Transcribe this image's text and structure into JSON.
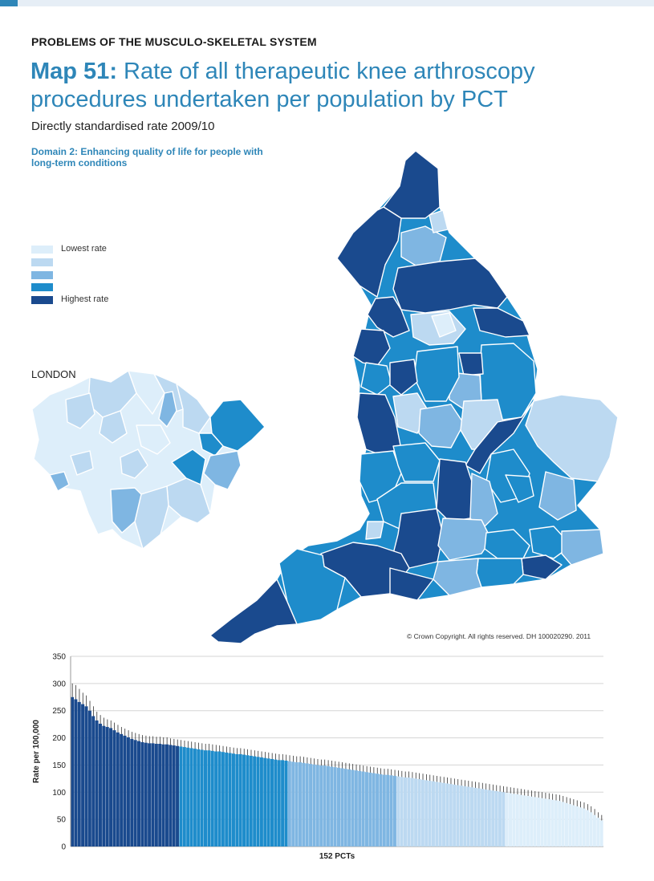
{
  "header": {
    "section": "PROBLEMS OF THE MUSCULO-SKELETAL SYSTEM",
    "title_prefix": "Map 51:",
    "title_rest": "Rate of all therapeutic knee arthroscopy procedures undertaken per population by PCT",
    "subtitle": "Directly standardised rate 2009/10",
    "domain": "Domain 2: Enhancing quality of life for people with long-term conditions"
  },
  "legend": {
    "items": [
      {
        "label": "Lowest rate",
        "color": "#ddeefa"
      },
      {
        "label": "",
        "color": "#bcd9f1"
      },
      {
        "label": "",
        "color": "#7fb6e2"
      },
      {
        "label": "",
        "color": "#1e8ccb"
      },
      {
        "label": "Highest rate",
        "color": "#1a4a8e"
      }
    ]
  },
  "london_label": "LONDON",
  "copyright": "© Crown Copyright. All rights reserved. DH 100020290. 2011",
  "chart_data": {
    "type": "bar",
    "xlabel": "152 PCTs",
    "ylabel": "Rate per 100,000",
    "ylim": [
      0,
      350
    ],
    "yticks": [
      0,
      50,
      100,
      150,
      200,
      250,
      300,
      350
    ],
    "grid": true,
    "n_bars": 152,
    "quintile_colors": [
      "#1a4a8e",
      "#1e8ccb",
      "#7fb6e2",
      "#bcd9f1",
      "#ddeefa"
    ],
    "values": [
      275,
      271,
      266,
      262,
      258,
      250,
      240,
      232,
      226,
      222,
      220,
      218,
      214,
      210,
      207,
      204,
      201,
      198,
      196,
      194,
      192,
      191,
      190,
      190,
      189,
      189,
      188,
      188,
      187,
      186,
      185,
      184,
      183,
      182,
      181,
      180,
      179,
      178,
      177,
      177,
      176,
      175,
      175,
      174,
      173,
      172,
      171,
      170,
      170,
      169,
      168,
      167,
      166,
      165,
      164,
      163,
      162,
      161,
      160,
      159,
      159,
      158,
      157,
      156,
      155,
      155,
      154,
      153,
      152,
      151,
      150,
      149,
      149,
      148,
      147,
      146,
      145,
      144,
      143,
      142,
      141,
      140,
      139,
      138,
      137,
      136,
      135,
      134,
      133,
      132,
      132,
      131,
      130,
      129,
      128,
      127,
      127,
      126,
      125,
      124,
      123,
      122,
      121,
      120,
      119,
      118,
      117,
      116,
      115,
      114,
      113,
      112,
      111,
      110,
      109,
      108,
      107,
      106,
      105,
      104,
      103,
      102,
      101,
      100,
      99,
      98,
      97,
      96,
      95,
      94,
      93,
      92,
      91,
      90,
      89,
      88,
      87,
      86,
      85,
      84,
      82,
      80,
      78,
      76,
      74,
      72,
      70,
      67,
      63,
      58,
      53,
      48
    ],
    "error_upper": [
      300,
      297,
      290,
      283,
      278,
      268,
      258,
      248,
      242,
      237,
      234,
      232,
      228,
      224,
      220,
      217,
      214,
      211,
      209,
      207,
      205,
      204,
      203,
      203,
      202,
      202,
      201,
      201,
      199,
      198,
      197,
      196,
      195,
      194,
      193,
      192,
      191,
      190,
      189,
      189,
      188,
      187,
      186,
      185,
      184,
      183,
      182,
      181,
      181,
      180,
      179,
      178,
      177,
      176,
      175,
      174,
      173,
      172,
      171,
      170,
      170,
      169,
      168,
      167,
      166,
      166,
      165,
      164,
      163,
      162,
      161,
      160,
      160,
      159,
      158,
      157,
      156,
      155,
      154,
      153,
      152,
      151,
      150,
      149,
      148,
      147,
      146,
      145,
      144,
      143,
      143,
      142,
      141,
      140,
      139,
      138,
      138,
      137,
      136,
      135,
      134,
      133,
      132,
      131,
      130,
      129,
      128,
      127,
      126,
      125,
      124,
      123,
      122,
      121,
      120,
      119,
      118,
      117,
      116,
      115,
      114,
      113,
      112,
      111,
      110,
      109,
      108,
      107,
      106,
      105,
      104,
      103,
      102,
      101,
      100,
      99,
      98,
      97,
      96,
      95,
      93,
      91,
      89,
      87,
      85,
      83,
      81,
      78,
      74,
      69,
      63,
      58
    ]
  }
}
